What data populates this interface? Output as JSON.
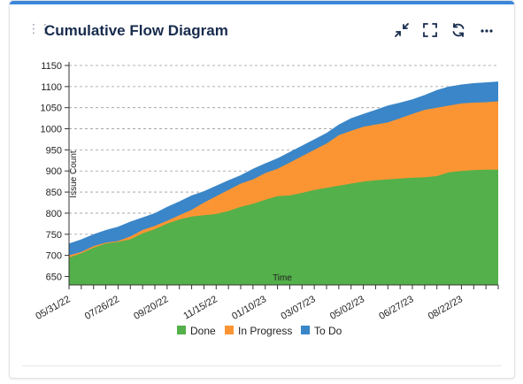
{
  "widget": {
    "title": "Cumulative Flow Diagram",
    "icons": [
      "minimize-icon",
      "fullscreen-icon",
      "refresh-icon",
      "more-icon"
    ]
  },
  "chart_data": {
    "type": "area",
    "stacked": true,
    "title": "",
    "xlabel": "Time",
    "ylabel": "Issue Count",
    "ylim": [
      630,
      1150
    ],
    "y_ticks": [
      650,
      700,
      750,
      800,
      850,
      900,
      950,
      1000,
      1050,
      1100,
      1150
    ],
    "x_tick_labels": [
      "05/31/22",
      "07/26/22",
      "09/20/22",
      "11/15/22",
      "01/10/23",
      "03/07/23",
      "05/02/23",
      "06/27/23",
      "08/22/23"
    ],
    "grid": true,
    "legend": "bottom",
    "x": [
      "05/31/22",
      "06/14/22",
      "06/28/22",
      "07/12/22",
      "07/26/22",
      "08/09/22",
      "08/23/22",
      "09/06/22",
      "09/20/22",
      "10/04/22",
      "10/18/22",
      "11/01/22",
      "11/15/22",
      "11/29/22",
      "12/13/22",
      "12/27/22",
      "01/10/23",
      "01/24/23",
      "02/07/23",
      "02/21/23",
      "03/07/23",
      "03/21/23",
      "04/04/23",
      "04/18/23",
      "05/02/23",
      "05/16/23",
      "05/30/23",
      "06/13/23",
      "06/27/23",
      "07/11/23",
      "07/25/23",
      "08/08/23",
      "08/22/23",
      "09/05/23",
      "09/19/23",
      "10/03/23"
    ],
    "cumulative": {
      "done": [
        695,
        705,
        718,
        728,
        732,
        738,
        752,
        762,
        775,
        785,
        792,
        795,
        798,
        805,
        815,
        822,
        832,
        840,
        842,
        848,
        855,
        860,
        865,
        870,
        875,
        878,
        880,
        882,
        884,
        885,
        888,
        897,
        900,
        902,
        903,
        903
      ],
      "in_progress": [
        700,
        708,
        722,
        730,
        734,
        745,
        760,
        770,
        782,
        795,
        808,
        825,
        840,
        855,
        870,
        880,
        895,
        905,
        920,
        935,
        950,
        965,
        985,
        995,
        1005,
        1010,
        1015,
        1025,
        1035,
        1045,
        1050,
        1055,
        1060,
        1062,
        1063,
        1065
      ],
      "to_do": [
        728,
        738,
        750,
        760,
        768,
        780,
        790,
        800,
        815,
        828,
        842,
        852,
        865,
        878,
        890,
        905,
        918,
        930,
        945,
        960,
        975,
        990,
        1010,
        1025,
        1035,
        1045,
        1055,
        1062,
        1070,
        1080,
        1092,
        1100,
        1105,
        1108,
        1110,
        1112
      ]
    },
    "series": [
      {
        "name": "Done",
        "color": "#54b04a"
      },
      {
        "name": "In Progress",
        "color": "#fb9534"
      },
      {
        "name": "To Do",
        "color": "#3a86c8"
      }
    ]
  }
}
